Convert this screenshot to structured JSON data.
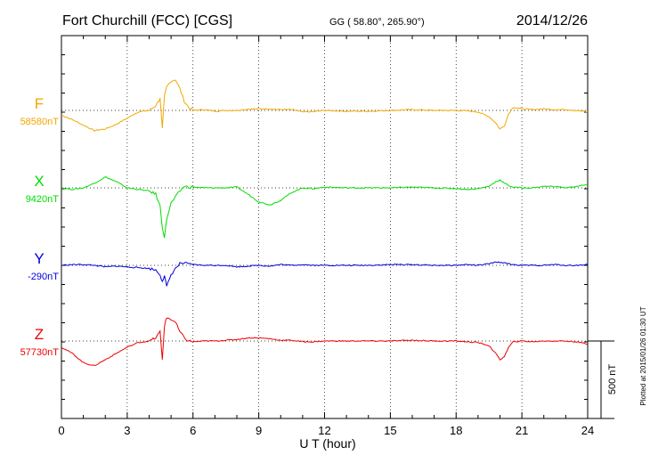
{
  "chart_data": {
    "type": "line",
    "title": "Fort Churchill (FCC)  [CGS]",
    "subtitle": "GG ( 58.80°, 265.90°)",
    "date": "2014/12/26",
    "xlabel": "U T (hour)",
    "xlim": [
      0,
      24
    ],
    "x_ticks": [
      "0",
      "3",
      "6",
      "9",
      "12",
      "15",
      "18",
      "21",
      "24"
    ],
    "scale_label": "500 nT",
    "scale_value_nT": 500,
    "plotted_note": "Plotted at 2015/01/26 01:30 UT",
    "grid": true,
    "x": [
      0,
      0.5,
      1,
      1.5,
      2,
      2.5,
      3,
      3.5,
      4,
      4.3,
      4.5,
      4.6,
      4.7,
      4.8,
      5,
      5.2,
      5.4,
      5.6,
      5.8,
      6,
      6.5,
      7,
      7.5,
      8,
      8.5,
      9,
      9.5,
      10,
      10.5,
      11,
      11.5,
      12,
      13,
      14,
      15,
      16,
      17,
      18,
      18.5,
      19,
      19.5,
      19.8,
      20,
      20.2,
      20.4,
      20.6,
      21,
      21.5,
      22,
      22.5,
      23,
      23.5,
      24
    ],
    "series": [
      {
        "name": "F",
        "baseline_label": "58580nT",
        "color": "#f0a800",
        "values": [
          -30,
          -60,
          -95,
          -130,
          -120,
          -90,
          -50,
          -10,
          0,
          30,
          80,
          -120,
          90,
          150,
          190,
          200,
          140,
          60,
          20,
          0,
          5,
          -5,
          0,
          0,
          8,
          10,
          10,
          5,
          5,
          -10,
          -8,
          0,
          -5,
          -5,
          0,
          5,
          0,
          0,
          -3,
          -10,
          -40,
          -80,
          -120,
          -100,
          -20,
          20,
          10,
          5,
          10,
          5,
          5,
          0,
          -10
        ]
      },
      {
        "name": "X",
        "baseline_label": "9420nT",
        "color": "#00dd00",
        "values": [
          0,
          -10,
          0,
          30,
          70,
          40,
          0,
          -10,
          -20,
          -40,
          -120,
          -250,
          -320,
          -200,
          -100,
          -60,
          -20,
          10,
          5,
          5,
          0,
          0,
          0,
          5,
          -40,
          -90,
          -110,
          -80,
          -30,
          0,
          -5,
          5,
          0,
          0,
          0,
          5,
          0,
          -5,
          -10,
          -5,
          10,
          40,
          50,
          30,
          15,
          5,
          0,
          0,
          10,
          10,
          0,
          10,
          20
        ]
      },
      {
        "name": "Y",
        "baseline_label": "-290nT",
        "color": "#0000dd",
        "values": [
          0,
          5,
          5,
          0,
          -10,
          -5,
          -10,
          -15,
          -20,
          -30,
          -60,
          -100,
          -70,
          -140,
          -60,
          -20,
          10,
          15,
          5,
          5,
          0,
          0,
          0,
          -10,
          -5,
          0,
          -5,
          5,
          0,
          5,
          0,
          0,
          0,
          0,
          5,
          5,
          0,
          0,
          5,
          0,
          10,
          20,
          20,
          15,
          10,
          5,
          0,
          0,
          0,
          5,
          0,
          0,
          5
        ]
      },
      {
        "name": "Z",
        "baseline_label": "57730nT",
        "color": "#ee0000",
        "values": [
          -40,
          -80,
          -140,
          -160,
          -120,
          -80,
          -40,
          -10,
          0,
          20,
          60,
          -120,
          100,
          150,
          140,
          120,
          60,
          20,
          0,
          -5,
          0,
          0,
          5,
          10,
          20,
          20,
          15,
          5,
          5,
          -5,
          -5,
          0,
          0,
          0,
          0,
          5,
          0,
          0,
          -5,
          -10,
          -30,
          -80,
          -120,
          -100,
          -40,
          -5,
          0,
          -5,
          0,
          0,
          0,
          -5,
          -20
        ]
      }
    ]
  }
}
